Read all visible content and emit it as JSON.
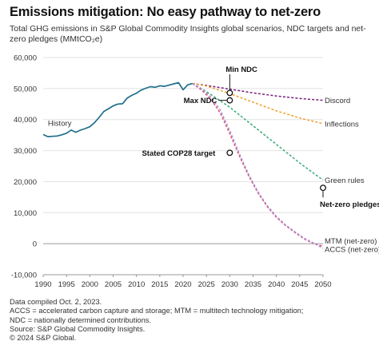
{
  "title": "Emissions mitigation: No easy pathway to net-zero",
  "subtitle": "Total GHG emissions in S&P Global Commodity Insights global scenarios, NDC targets and net-zero pledges (MMtCO₂e)",
  "notes": [
    "Data compiled Oct. 2, 2023.",
    "ACCS = accelerated carbon capture and storage; MTM = multitech technology mitigation;",
    "NDC = nationally determined contributions.",
    "Source: S&P Global Commodity Insights.",
    "© 2024 S&P Global."
  ],
  "chart_data": {
    "type": "line",
    "xlim": [
      1990,
      2050
    ],
    "ylim": [
      -10000,
      60000
    ],
    "x_ticks": [
      "1990",
      "1995",
      "2000",
      "2005",
      "2010",
      "2015",
      "2020",
      "2025",
      "2030",
      "2035",
      "2040",
      "2045",
      "2050"
    ],
    "y_ticks": [
      "60,000",
      "50,000",
      "40,000",
      "30,000",
      "20,000",
      "10,000",
      "0",
      "-10,000"
    ],
    "grid": "horizontal",
    "colors": {
      "history": "#1f6f8b",
      "discord": "#7a1e7e",
      "inflections": "#f0a030",
      "green_rules": "#3aa877",
      "mtm": "#e05070",
      "accs": "#a890d8"
    },
    "series": [
      {
        "name": "History",
        "style": "solid",
        "x": [
          1990,
          1991,
          1992,
          1993,
          1994,
          1995,
          1996,
          1997,
          1998,
          1999,
          2000,
          2001,
          2002,
          2003,
          2004,
          2005,
          2006,
          2007,
          2008,
          2009,
          2010,
          2011,
          2012,
          2013,
          2014,
          2015,
          2016,
          2017,
          2018,
          2019,
          2020,
          2021,
          2022
        ],
        "y": [
          35200,
          34500,
          34600,
          34700,
          35100,
          35600,
          36600,
          35900,
          36600,
          37100,
          37700,
          39000,
          40700,
          42600,
          43500,
          44400,
          45000,
          45100,
          46900,
          47800,
          48500,
          49500,
          50100,
          50600,
          50400,
          50900,
          50700,
          51100,
          51500,
          51900,
          49600,
          51200,
          51600
        ]
      },
      {
        "name": "Discord",
        "style": "dashed",
        "x": [
          2022,
          2025,
          2030,
          2035,
          2040,
          2045,
          2050
        ],
        "y": [
          51600,
          51000,
          49800,
          48600,
          47600,
          46800,
          46200
        ]
      },
      {
        "name": "Inflections",
        "style": "dashed",
        "x": [
          2022,
          2025,
          2030,
          2035,
          2040,
          2045,
          2050
        ],
        "y": [
          51600,
          50800,
          48400,
          45600,
          42800,
          40500,
          38700
        ]
      },
      {
        "name": "Green rules",
        "style": "dashed",
        "x": [
          2022,
          2025,
          2030,
          2035,
          2040,
          2045,
          2050
        ],
        "y": [
          51600,
          49000,
          44000,
          38000,
          32000,
          26000,
          20500
        ]
      },
      {
        "name": "MTM (net-zero)",
        "style": "dashed",
        "x": [
          2022,
          2024,
          2026,
          2028,
          2030,
          2032,
          2034,
          2036,
          2038,
          2040,
          2042,
          2044,
          2046,
          2048,
          2050
        ],
        "y": [
          51600,
          49500,
          46500,
          42000,
          35500,
          28500,
          22000,
          16500,
          12000,
          8500,
          5800,
          3600,
          1500,
          0,
          -800
        ]
      },
      {
        "name": "ACCS (net-zero)",
        "style": "dashed",
        "x": [
          2022,
          2024,
          2026,
          2028,
          2030,
          2032,
          2034,
          2036,
          2038,
          2040,
          2042,
          2044,
          2046,
          2048,
          2050
        ],
        "y": [
          51600,
          49900,
          47200,
          43000,
          36500,
          29200,
          22500,
          16900,
          12300,
          8800,
          6000,
          3800,
          1700,
          200,
          -1500
        ]
      }
    ],
    "markers": [
      {
        "name": "Min NDC",
        "x": 2030,
        "y": 48600
      },
      {
        "name": "Max NDC",
        "x": 2030,
        "y": 46200
      },
      {
        "name": "Stated COP28 target",
        "x": 2030,
        "y": 29300
      },
      {
        "name": "Net-zero pledges",
        "x": 2050,
        "y": 18000
      }
    ]
  }
}
